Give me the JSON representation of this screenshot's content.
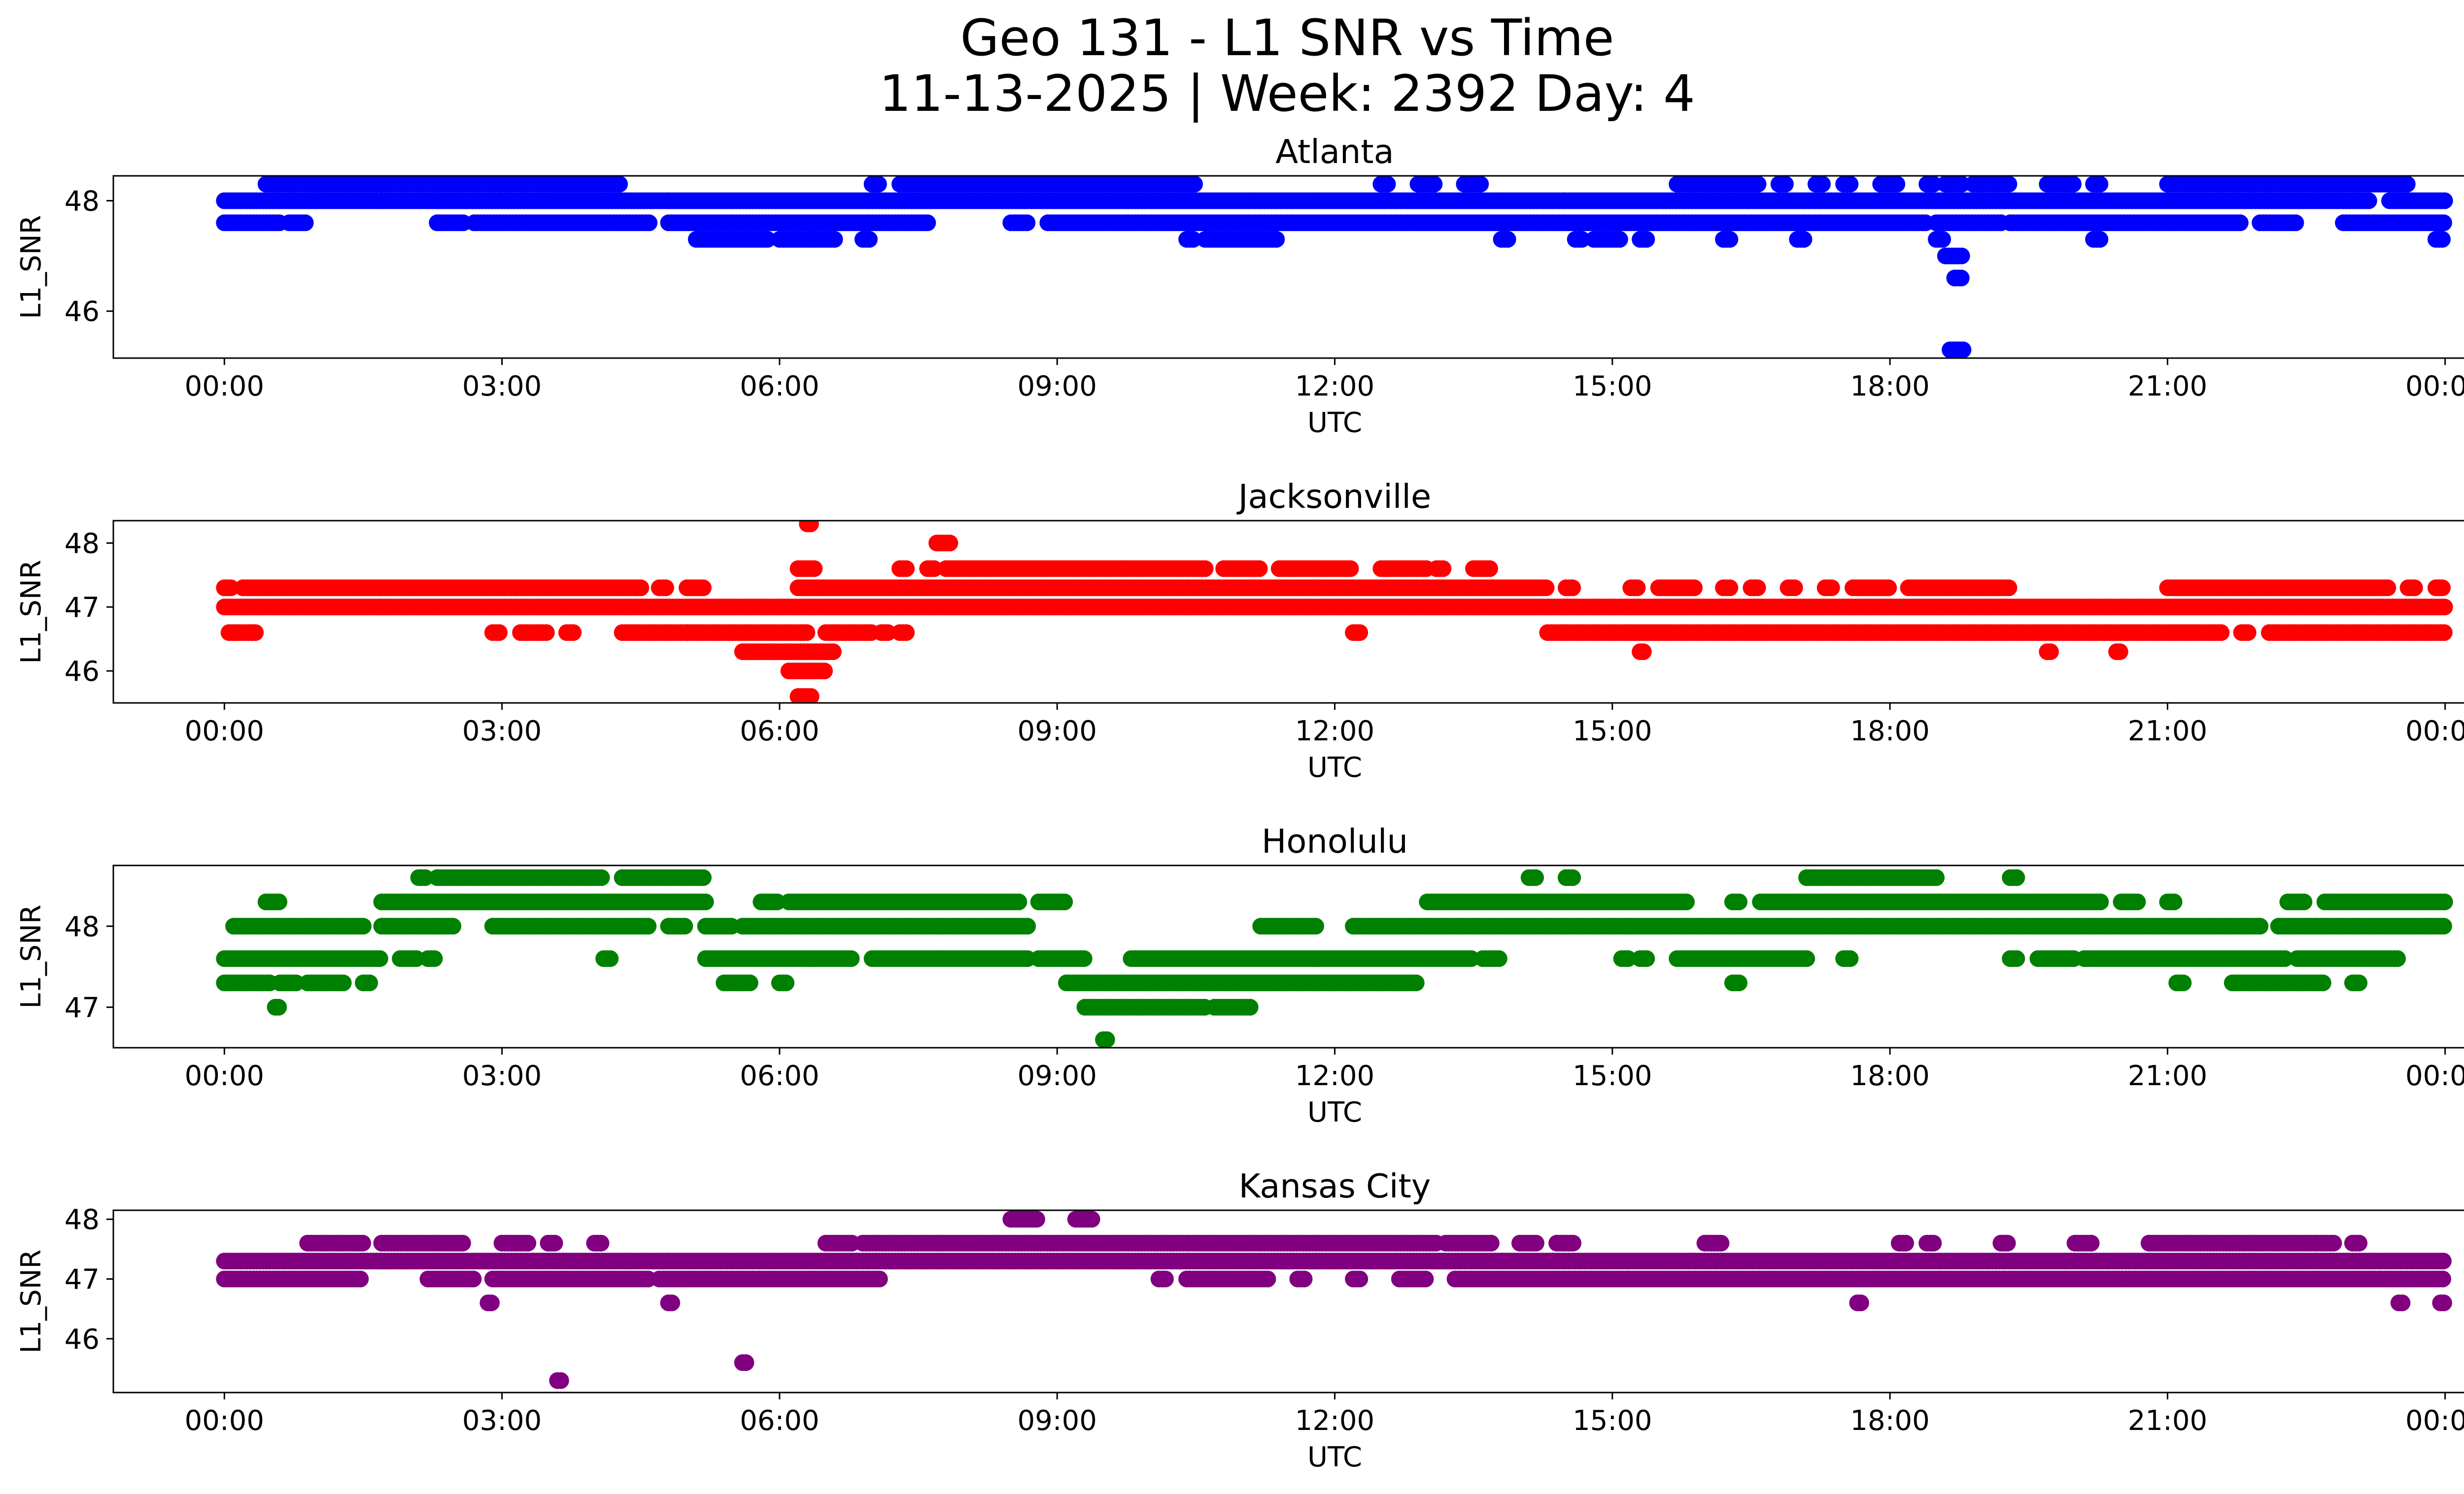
{
  "figure": {
    "title_line1": "Geo 131 - L1 SNR vs Time",
    "title_line2": "11-13-2025 | Week: 2392 Day: 4"
  },
  "chart_data": [
    {
      "type": "scatter",
      "title": "Atlanta",
      "xlabel": "UTC",
      "ylabel": "L1_SNR",
      "color": "#0000ff",
      "x_ticks": [
        "00:00",
        "03:00",
        "06:00",
        "09:00",
        "12:00",
        "15:00",
        "18:00",
        "21:00",
        "00:00"
      ],
      "y_ticks": [
        46,
        48
      ],
      "xlim_hours": [
        -1.2,
        25.2
      ],
      "ylim": [
        45.15,
        48.45
      ],
      "levels": [
        {
          "y": 48.3,
          "ranges": [
            [
              0.45,
              1.7
            ],
            [
              1.7,
              3.5
            ],
            [
              3.5,
              4.3
            ],
            [
              7.0,
              7.1
            ],
            [
              7.3,
              10.5
            ],
            [
              12.5,
              12.6
            ],
            [
              12.9,
              13.1
            ],
            [
              13.4,
              13.6
            ],
            [
              15.7,
              16.6
            ],
            [
              16.8,
              16.9
            ],
            [
              17.2,
              17.3
            ],
            [
              17.5,
              17.6
            ],
            [
              17.9,
              18.1
            ],
            [
              18.4,
              18.5
            ],
            [
              18.6,
              18.8
            ],
            [
              18.9,
              19.3
            ],
            [
              19.7,
              20.0
            ],
            [
              20.2,
              20.3
            ],
            [
              21.0,
              23.6
            ]
          ]
        },
        {
          "y": 48.0,
          "ranges": [
            [
              0.0,
              1.7
            ],
            [
              1.7,
              4.8
            ],
            [
              4.8,
              23.2
            ],
            [
              23.4,
              24.0
            ]
          ]
        },
        {
          "y": 47.6,
          "ranges": [
            [
              0.0,
              0.6
            ],
            [
              0.7,
              0.9
            ],
            [
              2.3,
              2.6
            ],
            [
              2.7,
              4.6
            ],
            [
              4.8,
              7.6
            ],
            [
              8.5,
              8.7
            ],
            [
              8.9,
              18.4
            ],
            [
              18.5,
              19.2
            ],
            [
              19.3,
              21.8
            ],
            [
              22.0,
              22.4
            ],
            [
              22.9,
              24.0
            ]
          ]
        },
        {
          "y": 47.3,
          "ranges": [
            [
              5.1,
              5.9
            ],
            [
              6.0,
              6.6
            ],
            [
              6.9,
              7.0
            ],
            [
              10.4,
              10.5
            ],
            [
              10.6,
              11.4
            ],
            [
              13.8,
              13.9
            ],
            [
              14.6,
              14.7
            ],
            [
              14.8,
              15.1
            ],
            [
              15.3,
              15.4
            ],
            [
              16.2,
              16.3
            ],
            [
              17.0,
              17.1
            ],
            [
              18.5,
              18.6
            ],
            [
              20.2,
              20.3
            ],
            [
              23.9,
              24.0
            ]
          ]
        },
        {
          "y": 47.0,
          "ranges": [
            [
              18.6,
              18.8
            ]
          ]
        },
        {
          "y": 46.6,
          "ranges": [
            [
              18.7,
              18.8
            ]
          ]
        },
        {
          "y": 45.3,
          "ranges": [
            [
              18.65,
              18.8
            ]
          ]
        }
      ]
    },
    {
      "type": "scatter",
      "title": "Jacksonville",
      "xlabel": "UTC",
      "ylabel": "L1_SNR",
      "color": "#ff0000",
      "x_ticks": [
        "00:00",
        "03:00",
        "06:00",
        "09:00",
        "12:00",
        "15:00",
        "18:00",
        "21:00",
        "00:00"
      ],
      "y_ticks": [
        46,
        47,
        48
      ],
      "xlim_hours": [
        -1.2,
        25.2
      ],
      "ylim": [
        45.5,
        48.35
      ],
      "levels": [
        {
          "y": 48.3,
          "ranges": [
            [
              6.3,
              6.35
            ]
          ]
        },
        {
          "y": 48.0,
          "ranges": [
            [
              7.7,
              7.85
            ]
          ]
        },
        {
          "y": 47.6,
          "ranges": [
            [
              6.2,
              6.4
            ],
            [
              7.3,
              7.4
            ],
            [
              7.6,
              7.7
            ],
            [
              7.8,
              10.6
            ],
            [
              10.8,
              11.2
            ],
            [
              11.4,
              12.2
            ],
            [
              12.5,
              13.0
            ],
            [
              13.1,
              13.2
            ],
            [
              13.5,
              13.7
            ]
          ]
        },
        {
          "y": 47.3,
          "ranges": [
            [
              0.0,
              0.1
            ],
            [
              0.2,
              1.7
            ],
            [
              1.7,
              4.5
            ],
            [
              4.7,
              4.8
            ],
            [
              5.0,
              5.2
            ],
            [
              6.2,
              14.3
            ],
            [
              14.5,
              14.6
            ],
            [
              15.2,
              15.3
            ],
            [
              15.5,
              15.9
            ],
            [
              16.2,
              16.3
            ],
            [
              16.5,
              16.6
            ],
            [
              16.9,
              17.0
            ],
            [
              17.3,
              17.4
            ],
            [
              17.6,
              18.0
            ],
            [
              18.2,
              19.3
            ],
            [
              21.0,
              23.4
            ],
            [
              23.6,
              23.7
            ],
            [
              23.9,
              24.0
            ]
          ]
        },
        {
          "y": 47.0,
          "ranges": [
            [
              0.0,
              1.7
            ],
            [
              1.7,
              24.0
            ]
          ]
        },
        {
          "y": 46.6,
          "ranges": [
            [
              0.05,
              0.3
            ],
            [
              0.3,
              0.35
            ],
            [
              2.9,
              3.0
            ],
            [
              3.2,
              3.5
            ],
            [
              3.7,
              3.8
            ],
            [
              4.3,
              5.0
            ],
            [
              5.0,
              6.3
            ],
            [
              6.5,
              7.0
            ],
            [
              7.1,
              7.2
            ],
            [
              7.3,
              7.4
            ],
            [
              12.2,
              12.3
            ],
            [
              14.3,
              21.6
            ],
            [
              21.8,
              21.9
            ],
            [
              22.1,
              24.0
            ]
          ]
        },
        {
          "y": 46.3,
          "ranges": [
            [
              5.6,
              6.6
            ],
            [
              15.3,
              15.35
            ],
            [
              19.7,
              19.75
            ],
            [
              20.45,
              20.5
            ]
          ]
        },
        {
          "y": 46.0,
          "ranges": [
            [
              6.1,
              6.5
            ]
          ]
        },
        {
          "y": 45.6,
          "ranges": [
            [
              6.2,
              6.35
            ]
          ]
        }
      ]
    },
    {
      "type": "scatter",
      "title": "Honolulu",
      "xlabel": "UTC",
      "ylabel": "L1_SNR",
      "color": "#008000",
      "x_ticks": [
        "00:00",
        "03:00",
        "06:00",
        "09:00",
        "12:00",
        "15:00",
        "18:00",
        "21:00",
        "00:00"
      ],
      "y_ticks": [
        47,
        48
      ],
      "xlim_hours": [
        -1.2,
        25.2
      ],
      "ylim": [
        46.5,
        48.75
      ],
      "levels": [
        {
          "y": 48.6,
          "ranges": [
            [
              2.1,
              2.2
            ],
            [
              2.3,
              3.2
            ],
            [
              3.2,
              4.1
            ],
            [
              4.3,
              5.2
            ],
            [
              14.1,
              14.2
            ],
            [
              14.5,
              14.6
            ],
            [
              17.1,
              18.5
            ],
            [
              19.3,
              19.4
            ]
          ]
        },
        {
          "y": 48.3,
          "ranges": [
            [
              0.45,
              0.6
            ],
            [
              1.7,
              5.2
            ],
            [
              5.8,
              6.0
            ],
            [
              6.1,
              8.6
            ],
            [
              8.8,
              9.1
            ],
            [
              13.0,
              15.8
            ],
            [
              16.3,
              16.4
            ],
            [
              16.6,
              20.3
            ],
            [
              20.5,
              20.7
            ],
            [
              21.0,
              21.1
            ],
            [
              22.3,
              22.5
            ],
            [
              22.7,
              24.0
            ]
          ]
        },
        {
          "y": 48.0,
          "ranges": [
            [
              0.1,
              1.5
            ],
            [
              1.7,
              2.5
            ],
            [
              2.9,
              4.6
            ],
            [
              4.8,
              5.0
            ],
            [
              5.2,
              5.5
            ],
            [
              5.6,
              8.7
            ],
            [
              11.2,
              11.8
            ],
            [
              12.2,
              22.0
            ],
            [
              22.2,
              24.0
            ]
          ]
        },
        {
          "y": 47.6,
          "ranges": [
            [
              0.0,
              1.7
            ],
            [
              1.9,
              2.1
            ],
            [
              2.2,
              2.3
            ],
            [
              4.1,
              4.2
            ],
            [
              5.2,
              6.8
            ],
            [
              7.0,
              8.7
            ],
            [
              8.8,
              9.3
            ],
            [
              9.8,
              13.5
            ],
            [
              13.6,
              13.8
            ],
            [
              15.1,
              15.2
            ],
            [
              15.3,
              15.4
            ],
            [
              15.7,
              17.1
            ],
            [
              17.5,
              17.6
            ],
            [
              19.3,
              19.4
            ],
            [
              19.6,
              20.0
            ],
            [
              20.1,
              22.3
            ],
            [
              22.4,
              23.5
            ]
          ]
        },
        {
          "y": 47.3,
          "ranges": [
            [
              0.0,
              0.5
            ],
            [
              0.6,
              0.8
            ],
            [
              0.9,
              1.3
            ],
            [
              1.5,
              1.6
            ],
            [
              5.4,
              5.7
            ],
            [
              6.0,
              6.1
            ],
            [
              9.1,
              12.9
            ],
            [
              16.3,
              16.4
            ],
            [
              21.1,
              21.2
            ],
            [
              21.7,
              22.7
            ],
            [
              23.0,
              23.1
            ]
          ]
        },
        {
          "y": 47.0,
          "ranges": [
            [
              0.55,
              0.6
            ],
            [
              9.3,
              10.6
            ],
            [
              10.7,
              11.1
            ]
          ]
        },
        {
          "y": 46.6,
          "ranges": [
            [
              9.5,
              9.55
            ]
          ]
        }
      ]
    },
    {
      "type": "scatter",
      "title": "Kansas City",
      "xlabel": "UTC",
      "ylabel": "L1_SNR",
      "color": "#800080",
      "x_ticks": [
        "00:00",
        "03:00",
        "06:00",
        "09:00",
        "12:00",
        "15:00",
        "18:00",
        "21:00",
        "00:00"
      ],
      "y_ticks": [
        46,
        47,
        48
      ],
      "xlim_hours": [
        -1.2,
        25.2
      ],
      "ylim": [
        45.1,
        48.15
      ],
      "levels": [
        {
          "y": 48.0,
          "ranges": [
            [
              8.5,
              8.8
            ],
            [
              9.2,
              9.4
            ]
          ]
        },
        {
          "y": 47.6,
          "ranges": [
            [
              0.9,
              1.5
            ],
            [
              1.7,
              2.6
            ],
            [
              3.0,
              3.3
            ],
            [
              3.5,
              3.6
            ],
            [
              4.0,
              4.1
            ],
            [
              6.5,
              6.8
            ],
            [
              6.9,
              13.1
            ],
            [
              13.2,
              13.7
            ],
            [
              14.0,
              14.2
            ],
            [
              14.4,
              14.6
            ],
            [
              16.0,
              16.2
            ],
            [
              18.1,
              18.2
            ],
            [
              18.4,
              18.5
            ],
            [
              19.2,
              19.3
            ],
            [
              20.0,
              20.2
            ],
            [
              20.8,
              22.8
            ],
            [
              23.0,
              23.1
            ]
          ]
        },
        {
          "y": 47.3,
          "ranges": [
            [
              0.0,
              1.7
            ],
            [
              1.7,
              4.8
            ],
            [
              4.8,
              24.0
            ]
          ]
        },
        {
          "y": 47.0,
          "ranges": [
            [
              0.0,
              1.5
            ],
            [
              2.2,
              2.7
            ],
            [
              2.9,
              4.6
            ],
            [
              4.7,
              7.1
            ],
            [
              10.1,
              10.2
            ],
            [
              10.4,
              11.3
            ],
            [
              11.6,
              11.7
            ],
            [
              12.2,
              12.3
            ],
            [
              12.7,
              13.0
            ],
            [
              13.3,
              24.0
            ]
          ]
        },
        {
          "y": 46.6,
          "ranges": [
            [
              2.85,
              2.9
            ],
            [
              4.8,
              4.85
            ],
            [
              17.65,
              17.7
            ],
            [
              23.5,
              23.55
            ],
            [
              23.95,
              24.0
            ]
          ]
        },
        {
          "y": 45.6,
          "ranges": [
            [
              5.6,
              5.65
            ]
          ]
        },
        {
          "y": 45.3,
          "ranges": [
            [
              3.6,
              3.65
            ]
          ]
        }
      ]
    }
  ]
}
